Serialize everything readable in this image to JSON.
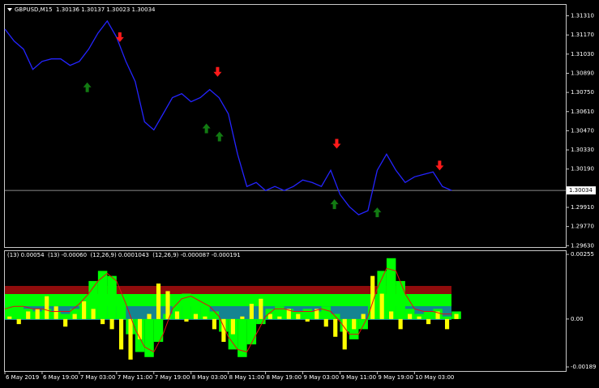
{
  "chart_data": [
    {
      "type": "line",
      "title": "GBPUSD,M15  1.30136 1.30137 1.30023 1.30034",
      "x": [
        0,
        2,
        4,
        6,
        8,
        10,
        12,
        14,
        16,
        18,
        20,
        22,
        24,
        26,
        28,
        30,
        32,
        34,
        36,
        38,
        40,
        42,
        44,
        46,
        48,
        50,
        52,
        54,
        56,
        58,
        60,
        62,
        64,
        66,
        68,
        70,
        72,
        74,
        76,
        78,
        80,
        82,
        84,
        86,
        88,
        90,
        92,
        94,
        96
      ],
      "series": [
        {
          "color": "#2424ff",
          "values": [
            1.31213,
            1.31125,
            1.31066,
            1.30918,
            1.30977,
            1.30995,
            1.30995,
            1.30948,
            1.30977,
            1.31066,
            1.31184,
            1.31272,
            1.31154,
            1.30977,
            1.3083,
            1.30535,
            1.30476,
            1.30594,
            1.30712,
            1.30741,
            1.30682,
            1.30712,
            1.30771,
            1.30712,
            1.30594,
            1.30299,
            1.30063,
            1.30092,
            1.30033,
            1.30063,
            1.30033,
            1.30063,
            1.3011,
            1.30092,
            1.30063,
            1.30181,
            1.30004,
            1.29915,
            1.29856,
            1.29886,
            1.30181,
            1.30299,
            1.30181,
            1.30092,
            1.30133,
            1.30151,
            1.30169,
            1.30063,
            1.30034
          ]
        }
      ],
      "markers": [
        {
          "color": "#ff1a1a",
          "direction": "down",
          "x": [
            24.7,
            45.7,
            71.3,
            93.4
          ],
          "values": [
            1.31154,
            1.309,
            1.30375,
            1.30216
          ]
        },
        {
          "color": "#127a12",
          "direction": "up",
          "x": [
            17.7,
            43.3,
            46.1,
            70.8,
            80
          ],
          "values": [
            1.30788,
            1.30487,
            1.30428,
            1.29933,
            1.29874
          ]
        }
      ],
      "current_price": 1.30034,
      "xlim": [
        0,
        120.5
      ],
      "ylim": [
        1.2962,
        1.3139
      ],
      "yticks": [
        {
          "value": 1.3131,
          "label": "1.31310"
        },
        {
          "value": 1.3117,
          "label": "1.31170"
        },
        {
          "value": 1.3103,
          "label": "1.31030"
        },
        {
          "value": 1.3089,
          "label": "1.30890"
        },
        {
          "value": 1.3075,
          "label": "1.30750"
        },
        {
          "value": 1.3061,
          "label": "1.30610"
        },
        {
          "value": 1.3047,
          "label": "1.30470"
        },
        {
          "value": 1.3033,
          "label": "1.30330"
        },
        {
          "value": 1.3019,
          "label": "1.30190"
        },
        {
          "value": 1.2991,
          "label": "1.29910"
        },
        {
          "value": 1.2977,
          "label": "1.29770"
        },
        {
          "value": 1.2963,
          "label": "1.29630"
        }
      ]
    },
    {
      "type": "histogram-line",
      "title": "(13) 0.00054  (13) -0.00060  (12,26,9) 0.0001043  (12,26,9) -0.000087 -0.000191",
      "x": [
        0,
        2,
        4,
        6,
        8,
        10,
        12,
        14,
        16,
        18,
        20,
        22,
        24,
        26,
        28,
        30,
        32,
        34,
        36,
        38,
        40,
        42,
        44,
        46,
        48,
        50,
        52,
        54,
        56,
        58,
        60,
        62,
        64,
        66,
        68,
        70,
        72,
        74,
        76,
        78,
        80,
        82,
        84,
        86,
        88,
        90,
        92,
        94,
        96
      ],
      "series": [
        {
          "kind": "bars",
          "color": "#00ff00",
          "values": [
            0.0005,
            0.0006,
            0.0004,
            0.0003,
            0.0004,
            0.0003,
            0.0002,
            0.0004,
            0.0009,
            0.0015,
            0.0019,
            0.0017,
            0.0006,
            -0.0006,
            -0.0013,
            -0.0015,
            -0.0009,
            0.0002,
            0.0009,
            0.001,
            0.0008,
            0.0006,
            0.0003,
            -0.0005,
            -0.0012,
            -0.0015,
            -0.001,
            -0.0002,
            0.0004,
            0.0005,
            0.0004,
            0.0003,
            0.0004,
            0.0003,
            0.0005,
            0.0002,
            -0.0005,
            -0.0008,
            -0.0004,
            0.0006,
            0.0019,
            0.0024,
            0.0015,
            0.0004,
            0.0002,
            0.0003,
            0.0004,
            0.0001,
            0.0003
          ]
        },
        {
          "kind": "bars",
          "color": "#ffff00",
          "values": [
            0.0001,
            -0.0002,
            0.0003,
            0.0004,
            0.0009,
            0.0005,
            -0.0003,
            0.0002,
            0.0007,
            0.0004,
            -0.0002,
            -0.0004,
            -0.0012,
            -0.0016,
            -0.0008,
            0.0002,
            0.0014,
            0.0011,
            0.0003,
            -0.0001,
            0.0002,
            0.0001,
            -0.0004,
            -0.0009,
            -0.0006,
            0.0001,
            0.0006,
            0.0008,
            0.0002,
            0.0001,
            0.0004,
            0.0002,
            -0.0001,
            0.0004,
            -0.0003,
            -0.0007,
            -0.0012,
            -0.0004,
            0.0002,
            0.0017,
            0.001,
            0.0003,
            -0.0004,
            0.0002,
            0.0001,
            -0.0002,
            0.0003,
            -0.0004,
            0.0002
          ]
        },
        {
          "kind": "line",
          "color": "#e01010",
          "values": [
            0.0004,
            0.0005,
            0.0005,
            0.0004,
            0.0004,
            0.0003,
            0.0003,
            0.0003,
            0.0006,
            0.001,
            0.0015,
            0.0018,
            0.0015,
            0.0006,
            -0.0004,
            -0.0011,
            -0.0013,
            -0.0006,
            0.0004,
            0.0008,
            0.0009,
            0.0007,
            0.0005,
            0.0001,
            -0.0007,
            -0.0012,
            -0.0013,
            -0.0006,
            0.0001,
            0.0004,
            0.0004,
            0.0003,
            0.0003,
            0.0003,
            0.0004,
            0.0003,
            -0.0001,
            -0.0006,
            -0.0006,
            0.0001,
            0.0012,
            0.002,
            0.0019,
            0.001,
            0.0004,
            0.0003,
            0.0003,
            0.0002,
            0.0002
          ]
        }
      ],
      "xlim": [
        0,
        120.5
      ],
      "ylim": [
        -0.00205,
        0.00268
      ],
      "yticks": [
        0.00255,
        {
          "value": 0,
          "label": "0.00"
        },
        -0.00189
      ],
      "xticks": [
        {
          "value": 0,
          "label": "6 May 2019"
        },
        {
          "value": 8,
          "label": "6 May 19:00"
        },
        {
          "value": 16,
          "label": "7 May 03:00"
        },
        {
          "value": 24,
          "label": "7 May 11:00"
        },
        {
          "value": 32,
          "label": "7 May 19:00"
        },
        {
          "value": 40,
          "label": "8 May 03:00"
        },
        {
          "value": 48,
          "label": "8 May 11:00"
        },
        {
          "value": 56,
          "label": "8 May 19:00"
        },
        {
          "value": 64,
          "label": "9 May 03:00"
        },
        {
          "value": 72,
          "label": "9 May 11:00"
        },
        {
          "value": 80,
          "label": "9 May 19:00"
        },
        {
          "value": 88,
          "label": "10 May 03:00"
        }
      ]
    }
  ]
}
